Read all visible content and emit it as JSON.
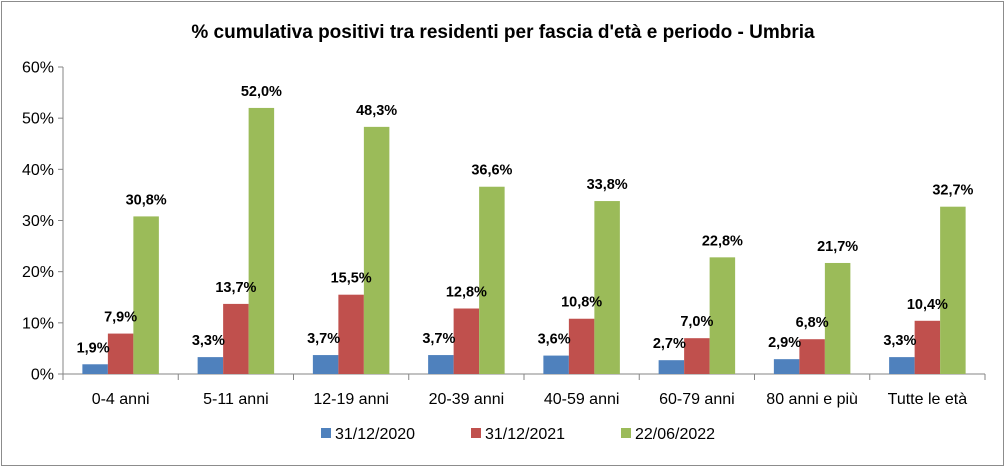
{
  "chart_data": {
    "type": "bar",
    "title": "% cumulativa positivi tra residenti per fascia d'età e periodo - Umbria",
    "xlabel": "",
    "ylabel": "",
    "ylim": [
      0,
      60
    ],
    "yticks": [
      "0%",
      "10%",
      "20%",
      "30%",
      "40%",
      "50%",
      "60%"
    ],
    "ytick_values": [
      0,
      10,
      20,
      30,
      40,
      50,
      60
    ],
    "grid": false,
    "legend_position": "bottom",
    "categories": [
      "0-4 anni",
      "5-11 anni",
      "12-19 anni",
      "20-39 anni",
      "40-59 anni",
      "60-79 anni",
      "80 anni e più",
      "Tutte le età"
    ],
    "series": [
      {
        "name": "31/12/2020",
        "color": "#4f81bd",
        "values": [
          1.9,
          3.3,
          3.7,
          3.7,
          3.6,
          2.7,
          2.9,
          3.3
        ],
        "labels": [
          "1,9%",
          "3,3%",
          "3,7%",
          "3,7%",
          "3,6%",
          "2,7%",
          "2,9%",
          "3,3%"
        ]
      },
      {
        "name": "31/12/2021",
        "color": "#c0504d",
        "values": [
          7.9,
          13.7,
          15.5,
          12.8,
          10.8,
          7.0,
          6.8,
          10.4
        ],
        "labels": [
          "7,9%",
          "13,7%",
          "15,5%",
          "12,8%",
          "10,8%",
          "7,0%",
          "6,8%",
          "10,4%"
        ]
      },
      {
        "name": "22/06/2022",
        "color": "#9bbb59",
        "values": [
          30.8,
          52.0,
          48.3,
          36.6,
          33.8,
          22.8,
          21.7,
          32.7
        ],
        "labels": [
          "30,8%",
          "52,0%",
          "48,3%",
          "36,6%",
          "33,8%",
          "22,8%",
          "21,7%",
          "32,7%"
        ]
      }
    ]
  }
}
